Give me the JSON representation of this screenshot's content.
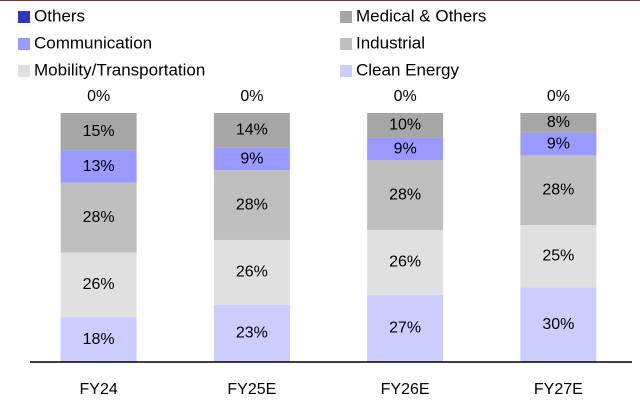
{
  "chart_data": {
    "type": "stacked_bar",
    "categories": [
      "FY24",
      "FY25E",
      "FY26E",
      "FY27E"
    ],
    "series": [
      {
        "name": "Clean Energy",
        "color": "#ccccff",
        "values": [
          18,
          23,
          27,
          30
        ],
        "value_labels": [
          "18%",
          "23%",
          "27%",
          "30%"
        ]
      },
      {
        "name": "Mobility/Transportation",
        "color": "#e0e0e0",
        "values": [
          26,
          26,
          26,
          25
        ],
        "value_labels": [
          "26%",
          "26%",
          "26%",
          "25%"
        ]
      },
      {
        "name": "Industrial",
        "color": "#bfbfbf",
        "values": [
          28,
          28,
          28,
          28
        ],
        "value_labels": [
          "28%",
          "28%",
          "28%",
          "28%"
        ]
      },
      {
        "name": "Communication",
        "color": "#9999ff",
        "values": [
          13,
          9,
          9,
          9
        ],
        "value_labels": [
          "13%",
          "9%",
          "9%",
          "9%"
        ]
      },
      {
        "name": "Medical & Others",
        "color": "#a6a6a6",
        "values": [
          15,
          14,
          10,
          8
        ],
        "value_labels": [
          "15%",
          "14%",
          "10%",
          "8%"
        ]
      },
      {
        "name": "Others",
        "color": "#3333cc",
        "values": [
          0,
          0,
          0,
          0
        ],
        "value_labels": [
          "0%",
          "0%",
          "0%",
          "0%"
        ]
      }
    ],
    "ylim": [
      0,
      100
    ]
  }
}
